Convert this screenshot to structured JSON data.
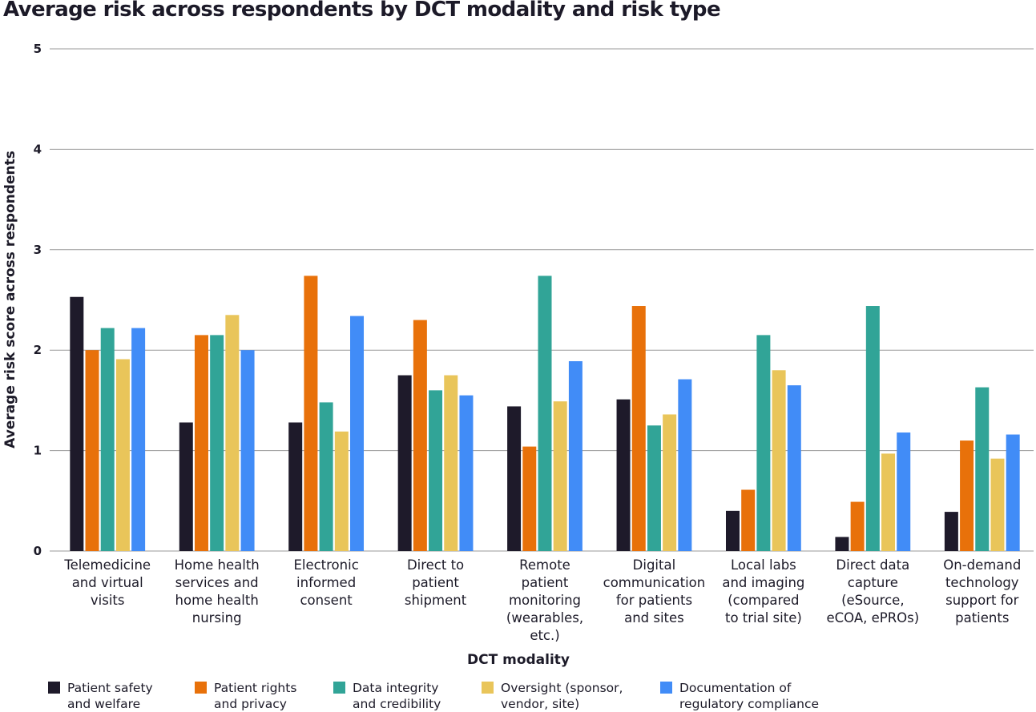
{
  "chart_data": {
    "type": "bar",
    "title": "Average risk across respondents by DCT modality and risk type",
    "xlabel": "DCT modality",
    "ylabel": "Average risk score across respondents",
    "ylim": [
      0,
      5
    ],
    "yticks": [
      0,
      1,
      2,
      3,
      4,
      5
    ],
    "grid": true,
    "legend_position": "bottom",
    "categories": [
      "Telemedicine\nand virtual\nvisits",
      "Home health\nservices and\nhome health\nnursing",
      "Electronic\ninformed\nconsent",
      "Direct to\npatient\nshipment",
      "Remote\npatient\nmonitoring\n(wearables,\netc.)",
      "Digital\ncommunication\nfor patients\nand sites",
      "Local labs\nand imaging\n(compared\nto trial site)",
      "Direct data\ncapture\n(eSource,\neCOA, ePROs)",
      "On-demand\ntechnology\nsupport for\npatients"
    ],
    "series": [
      {
        "name": "Patient safety\nand welfare",
        "color": "#1e1a2a",
        "values": [
          2.53,
          1.28,
          1.28,
          1.75,
          1.44,
          1.51,
          0.4,
          0.14,
          0.39
        ]
      },
      {
        "name": "Patient rights\nand privacy",
        "color": "#e8710a",
        "values": [
          2.0,
          2.15,
          2.74,
          2.3,
          1.04,
          2.44,
          0.61,
          0.49,
          1.1
        ]
      },
      {
        "name": "Data integrity\nand credibility",
        "color": "#31a497",
        "values": [
          2.22,
          2.15,
          1.48,
          1.6,
          2.74,
          1.25,
          2.15,
          2.44,
          1.63
        ]
      },
      {
        "name": "Oversight (sponsor,\nvendor, site)",
        "color": "#e9c55a",
        "values": [
          1.91,
          2.35,
          1.19,
          1.75,
          1.49,
          1.36,
          1.8,
          0.97,
          0.92
        ]
      },
      {
        "name": "Documentation of\nregulatory compliance",
        "color": "#418cf7",
        "values": [
          2.22,
          2.0,
          2.34,
          1.55,
          1.89,
          1.71,
          1.65,
          1.18,
          1.16
        ]
      }
    ]
  }
}
